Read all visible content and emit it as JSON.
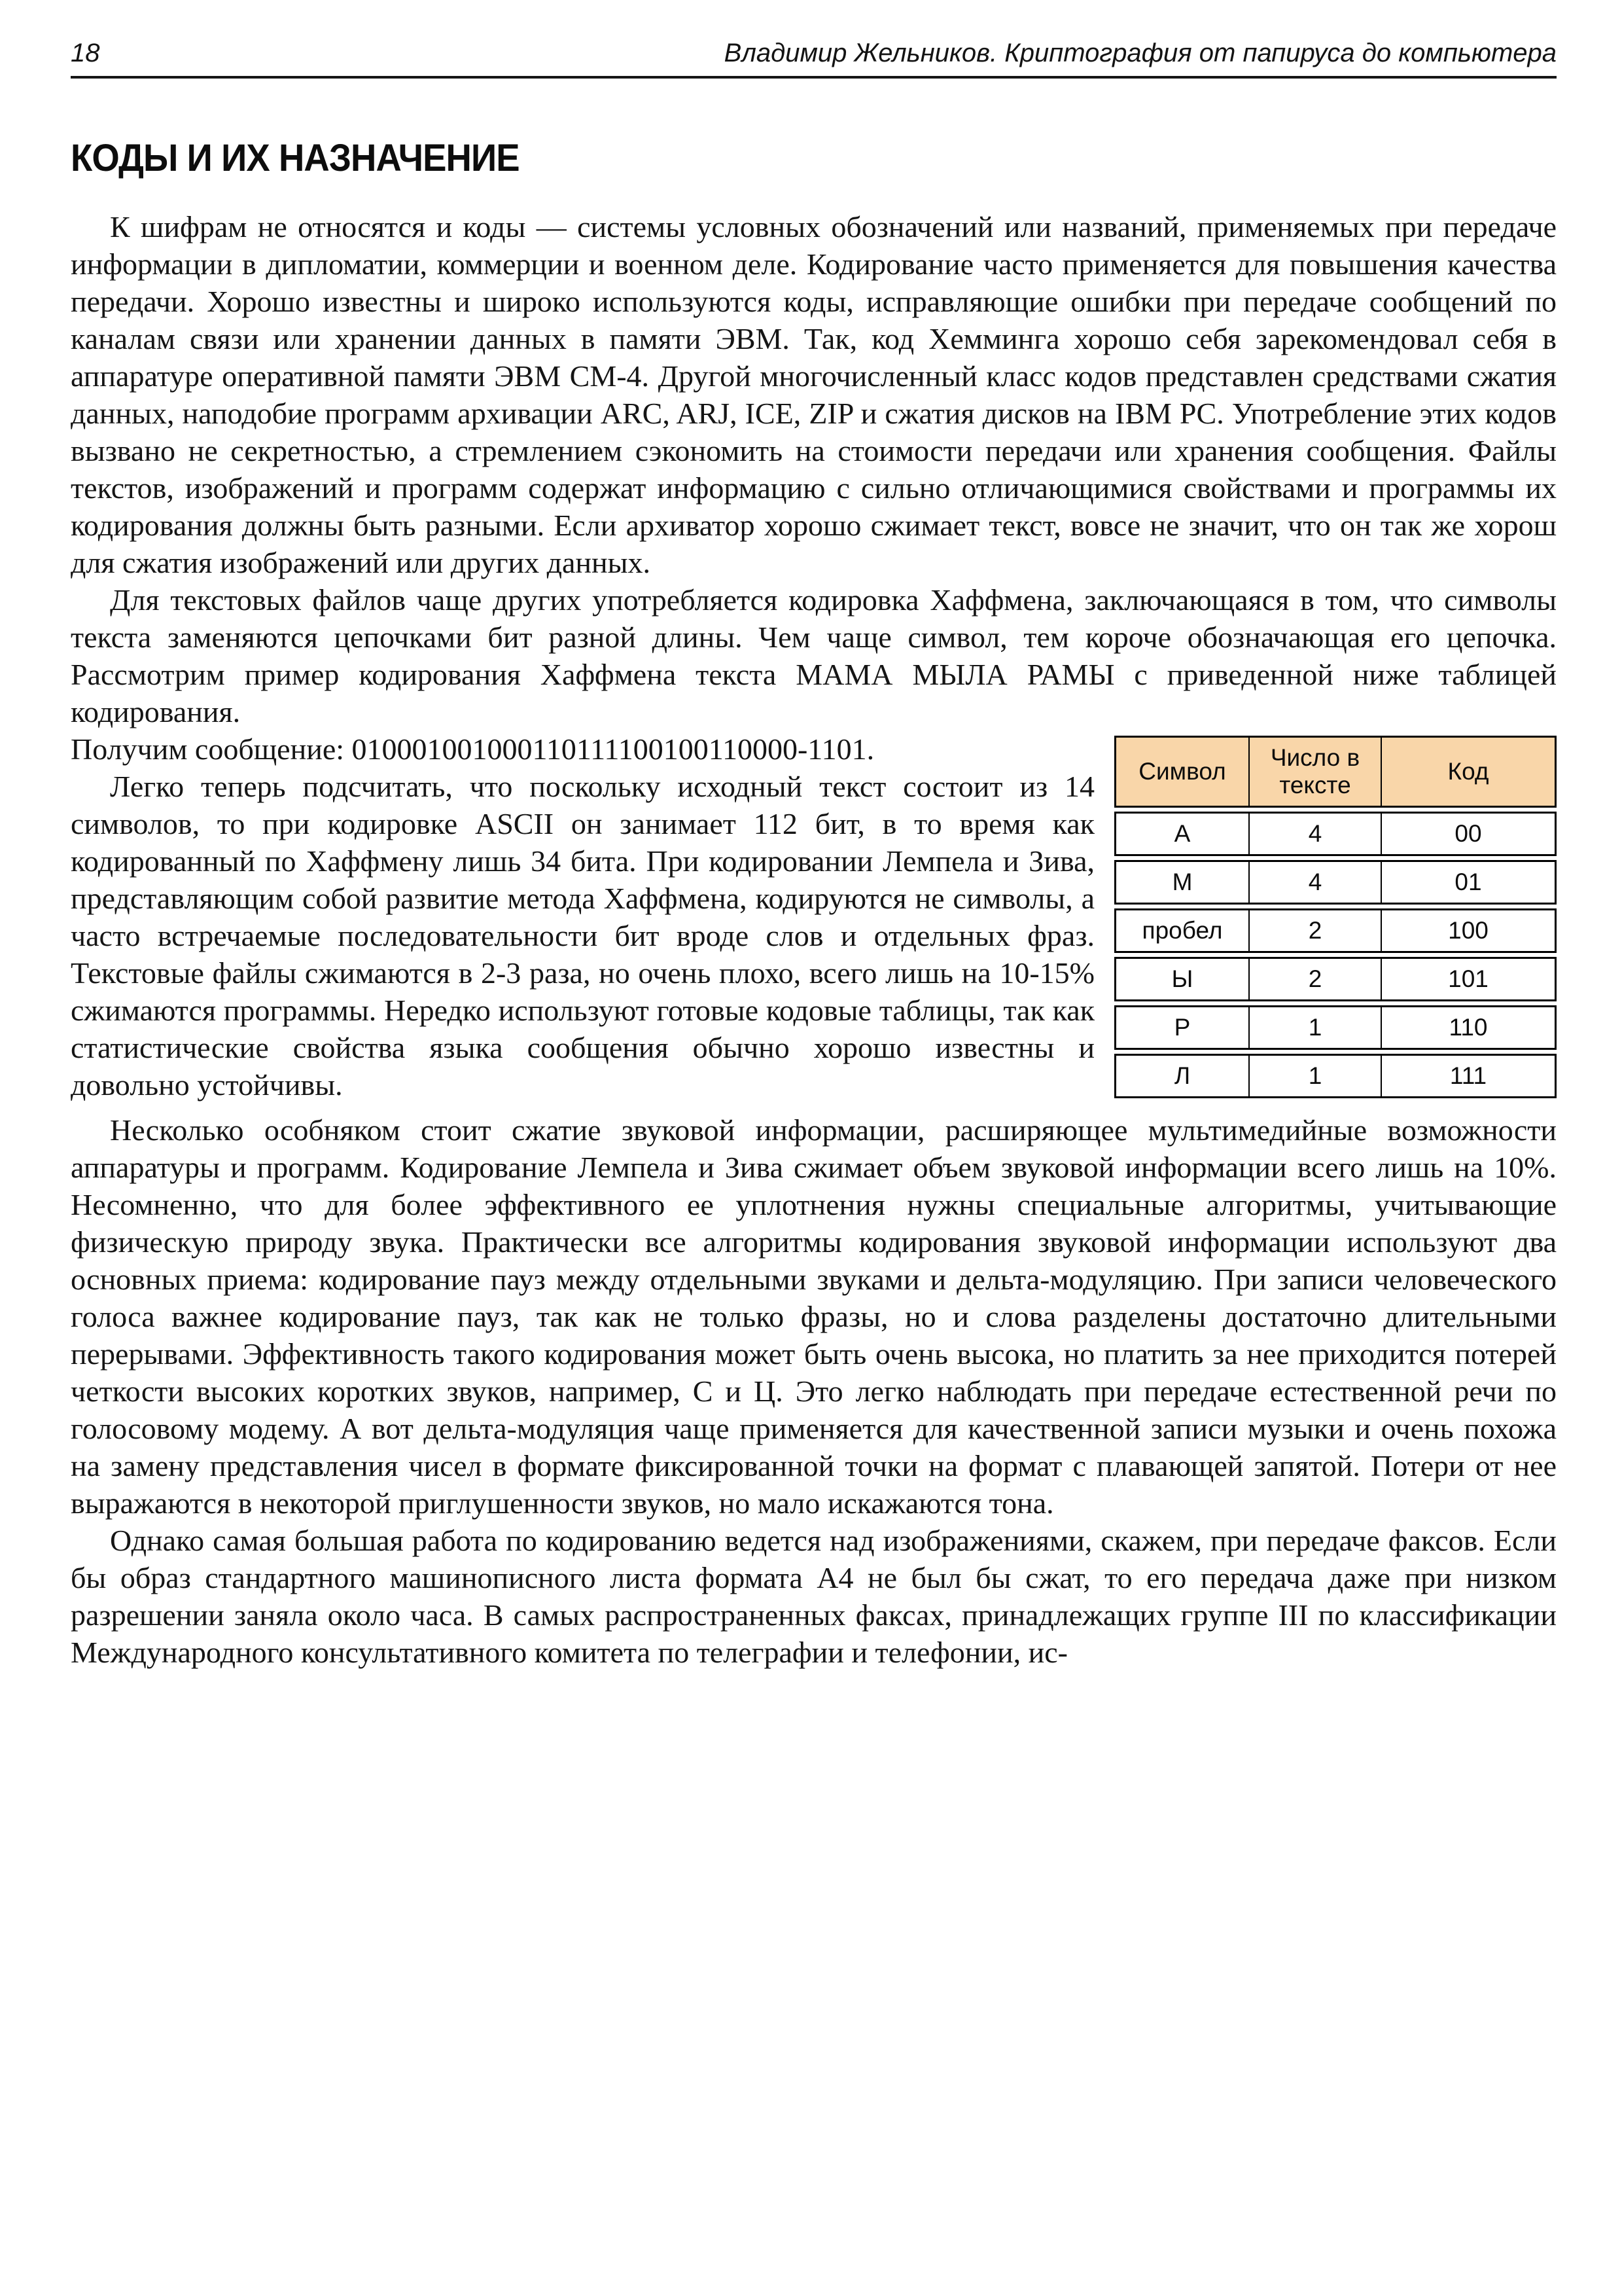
{
  "page_header": {
    "page_number": "18",
    "book_title": "Владимир Жельников. Криптография от папируса до компьютера"
  },
  "section": {
    "title": "КОДЫ И ИХ НАЗНАЧЕНИЕ"
  },
  "paragraphs": {
    "p1": "К шифрам не относятся и коды — системы условных обозначений или названий, применяемых при передаче информации в дипломатии, коммерции и военном деле. Кодирование часто применяется для повышения качества передачи. Хорошо известны и широко используются коды, исправляющие ошибки при передаче сообщений по каналам связи или хранении данных в памяти ЭВМ. Так, код Хемминга хорошо себя зарекомендовал себя в аппаратуре оперативной памяти ЭВМ СМ-4. Другой многочисленный класс кодов представлен средствами сжатия данных, наподобие программ архивации ARC, ARJ, ICE, ZIP и сжатия дисков на IBM PC. Употребление этих кодов вызвано не секретностью, а стремлением сэкономить на стоимости передачи или хранения сообщения. Файлы текстов, изображений и программ содержат информацию с сильно отличающимися свойствами и программы их кодирования должны быть разными. Если архиватор хорошо сжимает текст, вовсе не значит, что он так же хорош для сжатия изображений или других данных.",
    "p2": "Для текстовых файлов чаще других употребляется кодировка Хаффмена, заключающаяся в том, что символы текста заменяются цепочками бит разной длины. Чем чаще символ, тем короче обозначающая его цепочка. Рассмотрим пример кодирования Хаффмена текста МАМА МЫЛА РАМЫ с приведенной ниже таблицей кодирования.",
    "p2_message": "Получим сообщение: 010001001000110111100100110000-1101.",
    "p3": "Легко теперь подсчитать, что поскольку исходный текст состоит из 14 символов, то при кодировке ASCII он занимает 112 бит, в то время как кодированный по Хаффмену лишь 34 бита. При кодировании Лемпела и Зива, представляющим собой развитие метода Хаффмена, кодируются не символы, а часто встречаемые последовательности бит вроде слов и отдельных фраз. Текстовые файлы сжимаются в 2-3 раза, но очень плохо, всего лишь на 10-15% сжимаются программы. Нередко используют готовые кодовые таблицы, так как статистические свойства языка сообщения обычно хорошо известны и довольно устойчивы.",
    "p4": "Несколько особняком стоит сжатие звуковой информации, расширяющее мультимедийные возможности аппаратуры и программ. Кодирование Лемпела и Зива сжимает объем звуковой информации всего лишь на 10%. Несомненно, что для более эффективного ее уплотнения нужны специальные алгоритмы, учитывающие физическую природу звука. Практически все алгоритмы кодирования звуковой информации используют два основных приема: кодирование пауз между отдельными звуками и дельта-модуляцию. При записи человеческого голоса важнее кодирование пауз, так как не только фразы, но и слова разделены достаточно длительными перерывами. Эффективность такого кодирования может быть очень высока, но платить за нее приходится потерей четкости высоких коротких звуков, например, С и Ц. Это легко наблюдать при передаче естественной речи по голосовому модему. А вот дельта-модуляция чаще применяется для качественной записи музыки и очень похожа на замену представления чисел в формате фиксированной точки на формат с плавающей запятой. Потери от нее выражаются в некоторой приглушенности звуков, но мало искажаются тона.",
    "p5": "Однако самая большая работа по кодированию ведется над изображениями, скажем, при передаче факсов. Если бы образ стандартного машинописного листа формата А4 не был бы сжат, то его передача даже при низком разрешении заняла около часа. В самых распространенных факсах, принадлежащих группе III по классификации Международного консультативного комитета по телеграфии и телефонии, ис-"
  },
  "table": {
    "headers": [
      "Символ",
      "Число в тексте",
      "Код"
    ],
    "rows": [
      [
        "А",
        "4",
        "00"
      ],
      [
        "М",
        "4",
        "01"
      ],
      [
        "пробел",
        "2",
        "100"
      ],
      [
        "Ы",
        "2",
        "101"
      ],
      [
        "Р",
        "1",
        "110"
      ],
      [
        "Л",
        "1",
        "111"
      ]
    ]
  },
  "colors": {
    "table_header_bg": "#F9D6A9",
    "table_border": "#000000",
    "text": "#151515"
  }
}
